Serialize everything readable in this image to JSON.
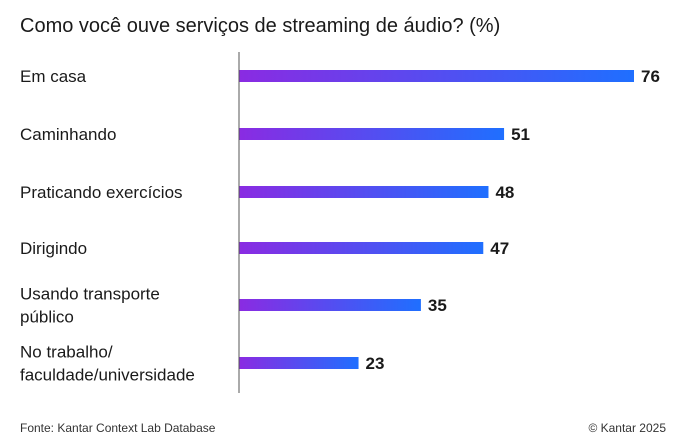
{
  "chart_data": {
    "type": "bar",
    "orientation": "horizontal",
    "title": "Como você ouve serviços de streaming de áudio? (%)",
    "categories": [
      [
        "Em casa"
      ],
      [
        "Caminhando"
      ],
      [
        "Praticando exercícios"
      ],
      [
        "Dirigindo"
      ],
      [
        "Usando transporte",
        "público"
      ],
      [
        "No trabalho/",
        "faculdade/universidade"
      ]
    ],
    "values": [
      76,
      51,
      48,
      47,
      35,
      23
    ],
    "xlim": [
      0,
      76
    ],
    "grid": false,
    "legend": "none",
    "bar_gradient": [
      "#8a2be2",
      "#1f6fff"
    ]
  },
  "footer": {
    "source": "Fonte: Kantar Context Lab Database",
    "copyright": "© Kantar 2025"
  },
  "colors": {
    "text": "#1a1a1a",
    "axis": "#555555",
    "bar_start": "#8a2be2",
    "bar_end": "#1f6fff"
  }
}
